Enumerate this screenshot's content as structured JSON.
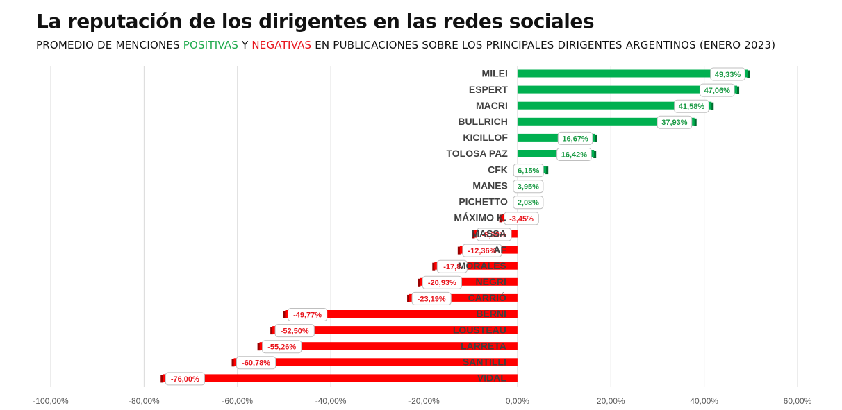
{
  "title": "La reputación de los dirigentes en las redes sociales",
  "subtitle": {
    "part1": "PROMEDIO DE MENCIONES ",
    "positive": "POSITIVAS",
    "part2": " Y ",
    "negative": "NEGATIVAS",
    "part3": " EN PUBLICACIONES SOBRE LOS PRINCIPALES DIRIGENTES ARGENTINOS (ENERO 2023)"
  },
  "colors": {
    "positive": "#00b050",
    "negative": "#ff0000",
    "grid": "#d9d9d9",
    "axis_text": "#595959"
  },
  "chart_data": {
    "type": "bar",
    "orientation": "horizontal",
    "categories": [
      "MILEI",
      "ESPERT",
      "MACRI",
      "BULLRICH",
      "KICILLOF",
      "TOLOSA PAZ",
      "CFK",
      "MANES",
      "PICHETTO",
      "MÁXIMO K.",
      "MASSA",
      "AF",
      "MORALES",
      "NEGRI",
      "CARRIÓ",
      "BERNI",
      "LOUSTEAU",
      "LARRETA",
      "SANTILLI",
      "VIDAL"
    ],
    "values": [
      49.33,
      47.06,
      41.58,
      37.93,
      16.67,
      16.42,
      6.15,
      3.95,
      2.08,
      -3.45,
      -9.3,
      -12.36,
      -17.8,
      -20.93,
      -23.19,
      -49.77,
      -52.5,
      -55.26,
      -60.78,
      -76.0
    ],
    "data_labels": [
      "49,33%",
      "47,06%",
      "41,58%",
      "37,93%",
      "16,67%",
      "16,42%",
      "6,15%",
      "3,95%",
      "2,08%",
      "-3,45%",
      "-9,30%",
      "-12,36%",
      "-17,8",
      "-20,93%",
      "-23,19%",
      "-49,77%",
      "-52,50%",
      "-55,26%",
      "-60,78%",
      "-76,00%"
    ],
    "xlim": [
      -100,
      60
    ],
    "x_ticks": [
      -100,
      -80,
      -60,
      -40,
      -20,
      0,
      20,
      40,
      60
    ],
    "x_tick_labels": [
      "-100,00%",
      "-80,00%",
      "-60,00%",
      "-40,00%",
      "-20,00%",
      "0,00%",
      "20,00%",
      "40,00%",
      "60,00%"
    ],
    "grid": true,
    "legend": "none"
  }
}
